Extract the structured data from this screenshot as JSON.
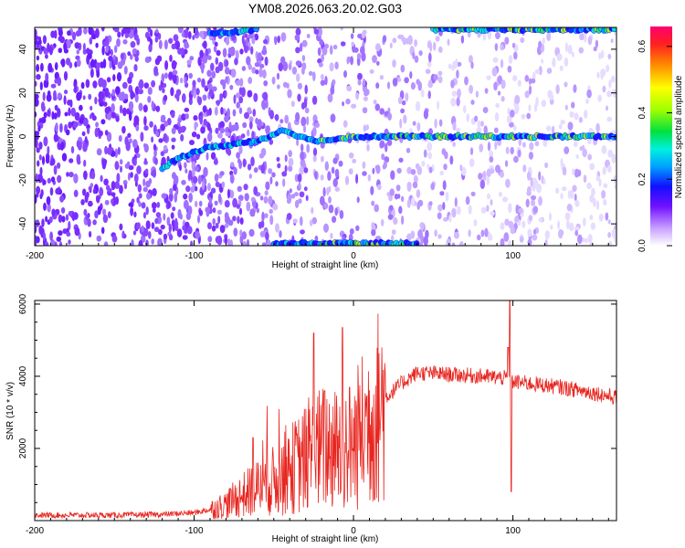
{
  "page": {
    "title": "YM08.2026.063.20.02.G03"
  },
  "chart_data": [
    {
      "type": "heatmap",
      "xlabel": "Height of straight line (km)",
      "ylabel": "Frequency (Hz)",
      "xlim": [
        -200,
        165
      ],
      "ylim": [
        -50,
        50
      ],
      "xticks": [
        -200,
        -100,
        0,
        100
      ],
      "yticks": [
        -40,
        -20,
        0,
        20,
        40
      ],
      "colorbar": {
        "label": "Normalized spectral amplitude",
        "range": [
          0.0,
          0.66
        ],
        "ticks": [
          0.0,
          0.2,
          0.4,
          0.6
        ],
        "tick_labels": [
          "0.0",
          "0.2",
          "0.4",
          "0.6"
        ]
      },
      "ridges": [
        {
          "x": [
            -120,
            -110,
            -100,
            -90,
            -80,
            -70,
            -60,
            -50,
            -45,
            -40,
            -30,
            -20,
            0,
            50,
            100,
            165
          ],
          "y": [
            -15,
            -10,
            -7,
            -5,
            -4,
            -3,
            -2,
            1,
            3,
            2,
            -1,
            -2,
            0,
            0,
            0,
            0
          ]
        },
        {
          "x": [
            -90,
            -60
          ],
          "y": [
            47,
            49
          ]
        },
        {
          "x": [
            50,
            165
          ],
          "y": [
            49,
            49
          ]
        },
        {
          "x": [
            -50,
            40
          ],
          "y": [
            -49,
            -49
          ]
        }
      ]
    },
    {
      "type": "line",
      "xlabel": "Height of straight line (km)",
      "ylabel": "SNR (10 * v/v)",
      "xlim": [
        -200,
        165
      ],
      "ylim": [
        0,
        6100
      ],
      "xticks": [
        -200,
        -100,
        0,
        100
      ],
      "yticks": [
        2000,
        4000,
        6000
      ],
      "color": "#e8251f",
      "envelope": {
        "x": [
          -200,
          -150,
          -120,
          -100,
          -90,
          -80,
          -70,
          -60,
          -50,
          -40,
          -30,
          -20,
          -10,
          0,
          10,
          20,
          30,
          40,
          60,
          80,
          95,
          100,
          110,
          130,
          150,
          165
        ],
        "y": [
          150,
          150,
          170,
          220,
          300,
          450,
          700,
          900,
          1100,
          1400,
          1700,
          2000,
          2000,
          2100,
          2800,
          3400,
          3800,
          4100,
          4050,
          4000,
          3950,
          3850,
          3800,
          3700,
          3550,
          3400
        ]
      },
      "spikes": [
        {
          "x": -63,
          "y": 2300
        },
        {
          "x": -25,
          "y": 5200
        },
        {
          "x": -18,
          "y": 3600
        },
        {
          "x": -7,
          "y": 5350
        },
        {
          "x": 97,
          "y": 4800
        },
        {
          "x": 98,
          "y": 6100
        },
        {
          "x": 99,
          "y": 800
        }
      ]
    }
  ]
}
